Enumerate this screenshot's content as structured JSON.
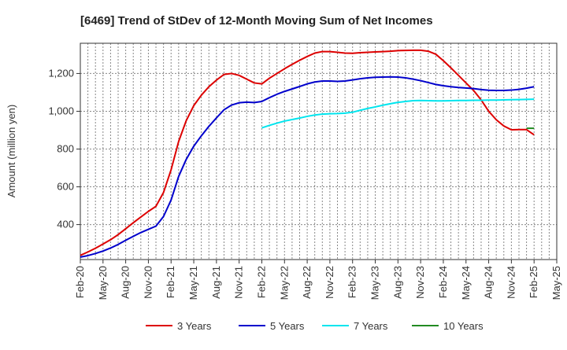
{
  "chart_data": {
    "type": "line",
    "title": "[6469]  Trend of StDev of 12-Month Moving Sum of Net Incomes",
    "ylabel": "Amount (million yen)",
    "xlabel": "",
    "ylim": [
      215,
      1360
    ],
    "yticks": [
      400,
      600,
      800,
      1000,
      1200
    ],
    "ytick_labels": [
      "400",
      "600",
      "800",
      "1,000",
      "1,200"
    ],
    "xticks": [
      "Feb-20",
      "May-20",
      "Aug-20",
      "Nov-20",
      "Feb-21",
      "May-21",
      "Aug-21",
      "Nov-21",
      "Feb-22",
      "May-22",
      "Aug-22",
      "Nov-22",
      "Feb-23",
      "May-23",
      "Aug-23",
      "Nov-23",
      "Feb-24",
      "May-24",
      "Aug-24",
      "Nov-24",
      "Feb-25",
      "May-25"
    ],
    "grid": true,
    "legend_position": "bottom",
    "series": [
      {
        "name": "3 Years",
        "color": "#dd0000",
        "points": [
          [
            "Feb-20",
            237
          ],
          [
            "Mar-20",
            255
          ],
          [
            "Apr-20",
            275
          ],
          [
            "May-20",
            297
          ],
          [
            "Jun-20",
            320
          ],
          [
            "Jul-20",
            347
          ],
          [
            "Aug-20",
            378
          ],
          [
            "Sep-20",
            410
          ],
          [
            "Oct-20",
            440
          ],
          [
            "Nov-20",
            470
          ],
          [
            "Dec-20",
            497
          ],
          [
            "Jan-21",
            570
          ],
          [
            "Feb-21",
            690
          ],
          [
            "Mar-21",
            840
          ],
          [
            "Apr-21",
            950
          ],
          [
            "May-21",
            1030
          ],
          [
            "Jun-21",
            1085
          ],
          [
            "Jul-21",
            1130
          ],
          [
            "Aug-21",
            1165
          ],
          [
            "Sep-21",
            1195
          ],
          [
            "Oct-21",
            1200
          ],
          [
            "Nov-21",
            1190
          ],
          [
            "Dec-21",
            1170
          ],
          [
            "Jan-22",
            1150
          ],
          [
            "Feb-22",
            1145
          ],
          [
            "Mar-22",
            1175
          ],
          [
            "Apr-22",
            1200
          ],
          [
            "May-22",
            1225
          ],
          [
            "Jun-22",
            1248
          ],
          [
            "Jul-22",
            1270
          ],
          [
            "Aug-22",
            1290
          ],
          [
            "Sep-22",
            1308
          ],
          [
            "Oct-22",
            1316
          ],
          [
            "Nov-22",
            1316
          ],
          [
            "Dec-22",
            1312
          ],
          [
            "Jan-23",
            1308
          ],
          [
            "Feb-23",
            1307
          ],
          [
            "Mar-23",
            1310
          ],
          [
            "Apr-23",
            1312
          ],
          [
            "May-23",
            1314
          ],
          [
            "Jun-23",
            1316
          ],
          [
            "Jul-23",
            1318
          ],
          [
            "Aug-23",
            1321
          ],
          [
            "Sep-23",
            1322
          ],
          [
            "Oct-23",
            1323
          ],
          [
            "Nov-23",
            1323
          ],
          [
            "Dec-23",
            1318
          ],
          [
            "Jan-24",
            1302
          ],
          [
            "Feb-24",
            1268
          ],
          [
            "Mar-24",
            1230
          ],
          [
            "Apr-24",
            1190
          ],
          [
            "May-24",
            1150
          ],
          [
            "Jun-24",
            1110
          ],
          [
            "Jul-24",
            1060
          ],
          [
            "Aug-24",
            1000
          ],
          [
            "Sep-24",
            955
          ],
          [
            "Oct-24",
            922
          ],
          [
            "Nov-24",
            902
          ],
          [
            "Dec-24",
            903
          ],
          [
            "Jan-25",
            903
          ],
          [
            "Feb-25",
            875
          ]
        ]
      },
      {
        "name": "5 Years",
        "color": "#0000cc",
        "points": [
          [
            "Feb-20",
            228
          ],
          [
            "Mar-20",
            236
          ],
          [
            "Apr-20",
            247
          ],
          [
            "May-20",
            260
          ],
          [
            "Jun-20",
            276
          ],
          [
            "Jul-20",
            295
          ],
          [
            "Aug-20",
            317
          ],
          [
            "Sep-20",
            338
          ],
          [
            "Oct-20",
            358
          ],
          [
            "Nov-20",
            375
          ],
          [
            "Dec-20",
            392
          ],
          [
            "Jan-21",
            443
          ],
          [
            "Feb-21",
            530
          ],
          [
            "Mar-21",
            655
          ],
          [
            "Apr-21",
            745
          ],
          [
            "May-21",
            815
          ],
          [
            "Jun-21",
            870
          ],
          [
            "Jul-21",
            920
          ],
          [
            "Aug-21",
            965
          ],
          [
            "Sep-21",
            1008
          ],
          [
            "Oct-21",
            1033
          ],
          [
            "Nov-21",
            1045
          ],
          [
            "Dec-21",
            1048
          ],
          [
            "Jan-22",
            1046
          ],
          [
            "Feb-22",
            1052
          ],
          [
            "Mar-22",
            1072
          ],
          [
            "Apr-22",
            1090
          ],
          [
            "May-22",
            1105
          ],
          [
            "Jun-22",
            1118
          ],
          [
            "Jul-22",
            1131
          ],
          [
            "Aug-22",
            1145
          ],
          [
            "Sep-22",
            1155
          ],
          [
            "Oct-22",
            1160
          ],
          [
            "Nov-22",
            1160
          ],
          [
            "Dec-22",
            1158
          ],
          [
            "Jan-23",
            1160
          ],
          [
            "Feb-23",
            1166
          ],
          [
            "Mar-23",
            1172
          ],
          [
            "Apr-23",
            1177
          ],
          [
            "May-23",
            1180
          ],
          [
            "Jun-23",
            1181
          ],
          [
            "Jul-23",
            1182
          ],
          [
            "Aug-23",
            1181
          ],
          [
            "Sep-23",
            1177
          ],
          [
            "Oct-23",
            1170
          ],
          [
            "Nov-23",
            1162
          ],
          [
            "Dec-23",
            1152
          ],
          [
            "Jan-24",
            1142
          ],
          [
            "Feb-24",
            1135
          ],
          [
            "Mar-24",
            1130
          ],
          [
            "Apr-24",
            1126
          ],
          [
            "May-24",
            1123
          ],
          [
            "Jun-24",
            1120
          ],
          [
            "Jul-24",
            1115
          ],
          [
            "Aug-24",
            1111
          ],
          [
            "Sep-24",
            1110
          ],
          [
            "Oct-24",
            1110
          ],
          [
            "Nov-24",
            1112
          ],
          [
            "Dec-24",
            1116
          ],
          [
            "Jan-25",
            1122
          ],
          [
            "Feb-25",
            1130
          ]
        ]
      },
      {
        "name": "7 Years",
        "color": "#00e5ee",
        "points": [
          [
            "Feb-22",
            912
          ],
          [
            "Mar-22",
            925
          ],
          [
            "Apr-22",
            937
          ],
          [
            "May-22",
            948
          ],
          [
            "Jun-22",
            956
          ],
          [
            "Jul-22",
            964
          ],
          [
            "Aug-22",
            973
          ],
          [
            "Sep-22",
            980
          ],
          [
            "Oct-22",
            985
          ],
          [
            "Nov-22",
            987
          ],
          [
            "Dec-22",
            988
          ],
          [
            "Jan-23",
            990
          ],
          [
            "Feb-23",
            995
          ],
          [
            "Mar-23",
            1005
          ],
          [
            "Apr-23",
            1015
          ],
          [
            "May-23",
            1023
          ],
          [
            "Jun-23",
            1032
          ],
          [
            "Jul-23",
            1040
          ],
          [
            "Aug-23",
            1047
          ],
          [
            "Sep-23",
            1052
          ],
          [
            "Oct-23",
            1056
          ],
          [
            "Nov-23",
            1057
          ],
          [
            "Dec-23",
            1056
          ],
          [
            "Jan-24",
            1055
          ],
          [
            "Feb-24",
            1055
          ],
          [
            "Mar-24",
            1056
          ],
          [
            "Apr-24",
            1057
          ],
          [
            "May-24",
            1057
          ],
          [
            "Jun-24",
            1058
          ],
          [
            "Jul-24",
            1058
          ],
          [
            "Aug-24",
            1059
          ],
          [
            "Sep-24",
            1059
          ],
          [
            "Oct-24",
            1060
          ],
          [
            "Nov-24",
            1061
          ],
          [
            "Dec-24",
            1062
          ],
          [
            "Jan-25",
            1063
          ],
          [
            "Feb-25",
            1064
          ]
        ]
      },
      {
        "name": "10 Years",
        "color": "#228b22",
        "points": [
          [
            "Jan-25",
            910
          ],
          [
            "Feb-25",
            910
          ]
        ]
      }
    ]
  }
}
